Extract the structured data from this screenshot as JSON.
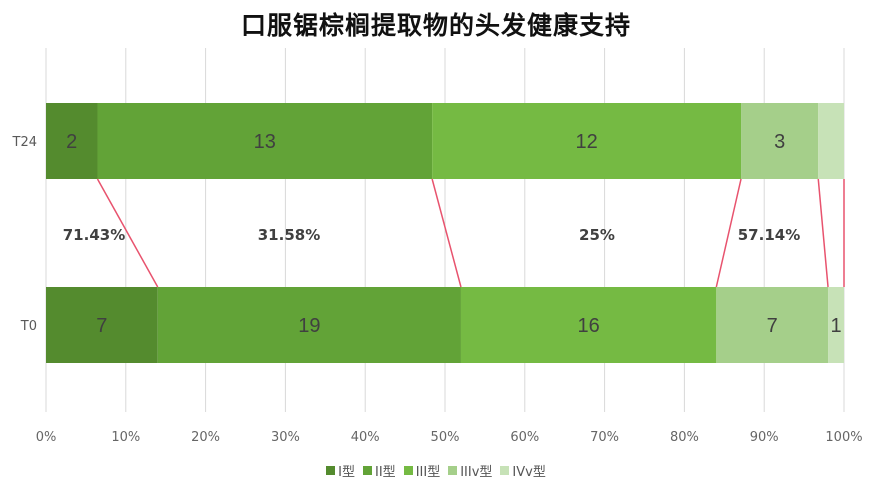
{
  "chart_data": {
    "type": "bar",
    "orientation": "horizontal",
    "stacked": "percent",
    "title": "口服锯棕榈提取物的头发健康支持",
    "categories": [
      "T24",
      "T0"
    ],
    "series": [
      {
        "name": "I型",
        "color": "#548b2e",
        "values": [
          2,
          7
        ]
      },
      {
        "name": "II型",
        "color": "#62a337",
        "values": [
          13,
          19
        ]
      },
      {
        "name": "III型",
        "color": "#75ba43",
        "values": [
          12,
          16
        ]
      },
      {
        "name": "IIIv型",
        "color": "#a5cf8a",
        "values": [
          3,
          7
        ]
      },
      {
        "name": "IVv型",
        "color": "#c7e2b7",
        "values": [
          1,
          1
        ]
      }
    ],
    "segment_labels": [
      [
        "2",
        "13",
        "12",
        "3",
        ""
      ],
      [
        "7",
        "19",
        "16",
        "7",
        "1"
      ]
    ],
    "xlim": [
      0,
      100
    ],
    "x_ticks": [
      "0%",
      "10%",
      "20%",
      "30%",
      "40%",
      "50%",
      "60%",
      "70%",
      "80%",
      "90%",
      "100%"
    ],
    "grid": true,
    "legend_position": "bottom",
    "connector_color": "#e8536e",
    "annotations": [
      "71.43%",
      "31.58%",
      "25%",
      "57.14%"
    ]
  }
}
